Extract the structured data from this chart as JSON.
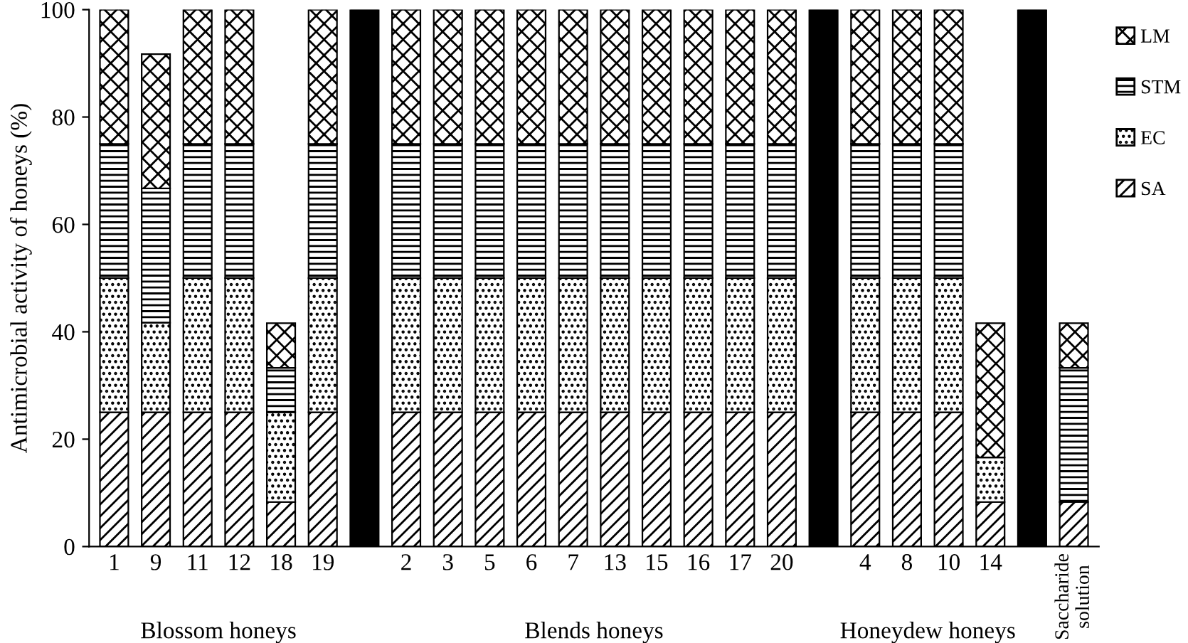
{
  "chart_data": {
    "type": "bar",
    "stacked": true,
    "ylabel": "Antimicrobial activity of honeys (%)",
    "categories": [
      "1",
      "9",
      "11",
      "12",
      "18",
      "19",
      null,
      "2",
      "3",
      "5",
      "6",
      "7",
      "13",
      "15",
      "16",
      "17",
      "20",
      null,
      "4",
      "8",
      "10",
      "14",
      null,
      "Saccharide\nsolution"
    ],
    "series": [
      {
        "name": "SA",
        "color": "#000000",
        "values": [
          25,
          25,
          25,
          25,
          8.3,
          25,
          null,
          25,
          25,
          25,
          25,
          25,
          25,
          25,
          25,
          25,
          25,
          null,
          25,
          25,
          25,
          8.3,
          null,
          8.3
        ]
      },
      {
        "name": "EC",
        "color": "#000000",
        "values": [
          25,
          16.7,
          25,
          25,
          16.7,
          25,
          null,
          25,
          25,
          25,
          25,
          25,
          25,
          25,
          25,
          25,
          25,
          null,
          25,
          25,
          25,
          8.3,
          null,
          null
        ]
      },
      {
        "name": "STM",
        "color": "#000000",
        "values": [
          25,
          25,
          25,
          25,
          8.3,
          25,
          null,
          25,
          25,
          25,
          25,
          25,
          25,
          25,
          25,
          25,
          25,
          null,
          25,
          25,
          25,
          null,
          null,
          25
        ]
      },
      {
        "name": "LM",
        "color": "#000000",
        "values": [
          25,
          25,
          25,
          25,
          8.3,
          25,
          null,
          25,
          25,
          25,
          25,
          25,
          25,
          25,
          25,
          25,
          25,
          null,
          25,
          25,
          25,
          25,
          null,
          8.3
        ]
      },
      {
        "color": "#000000",
        "values": [
          null,
          null,
          null,
          null,
          null,
          null,
          100,
          null,
          null,
          null,
          null,
          null,
          null,
          null,
          null,
          null,
          null,
          100,
          null,
          null,
          null,
          null,
          100,
          null
        ]
      }
    ],
    "ylim": [
      0,
      100
    ],
    "yticks": [
      0,
      20,
      40,
      60,
      80,
      100
    ],
    "grid": false,
    "legend": "top right",
    "annotations": [
      "Blossom honeys",
      "Blends honeys",
      "Honeydew honeys"
    ]
  }
}
